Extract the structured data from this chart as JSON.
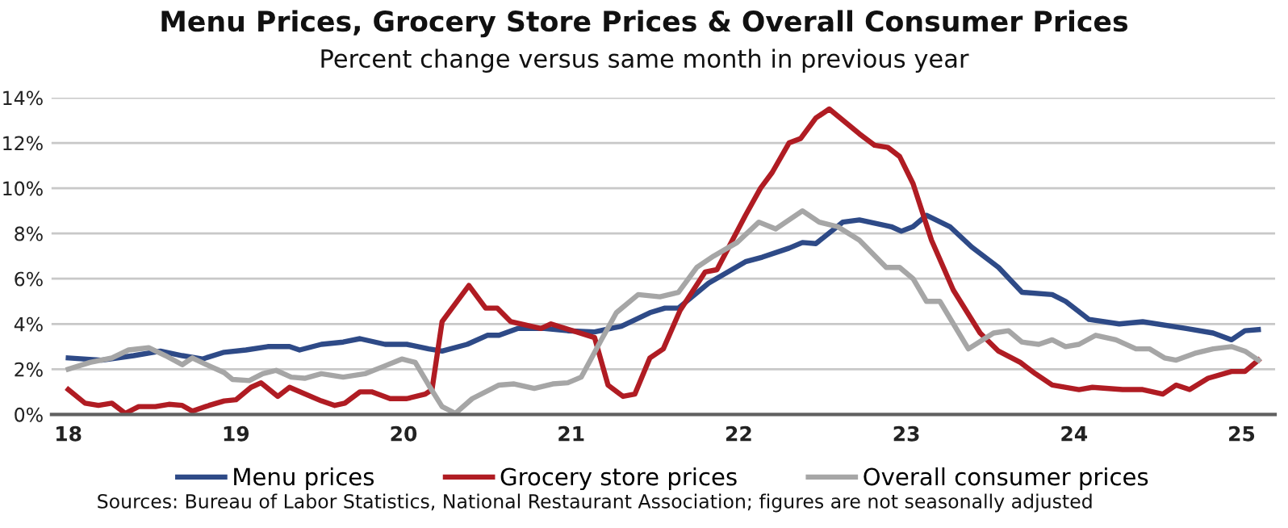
{
  "chart_data": {
    "type": "line",
    "title": "Menu Prices, Grocery Store Prices & Overall Consumer Prices",
    "subtitle": "Percent change versus same month in previous year",
    "annotations": [
      "Sources: Bureau of Labor Statistics, National Restaurant Association; figures are not seasonally adjusted"
    ],
    "xlim": [
      17.9,
      25.2
    ],
    "xticks": [
      18,
      19,
      20,
      21,
      22,
      23,
      24,
      25
    ],
    "ylim": [
      0,
      14
    ],
    "yticks": [
      {
        "value": 0,
        "label": "0%"
      },
      {
        "value": 2,
        "label": "2%"
      },
      {
        "value": 4,
        "label": "4%"
      },
      {
        "value": 6,
        "label": "6%"
      },
      {
        "value": 8,
        "label": "8%"
      },
      {
        "value": 10,
        "label": "10%"
      },
      {
        "value": 12,
        "label": "12%"
      },
      {
        "value": 14,
        "label": "14%"
      }
    ],
    "grid": "y",
    "legend": "bottom",
    "line_style": "solid",
    "marker": "none",
    "series": [
      {
        "name": "Menu prices",
        "color": "#2e4a87",
        "x": [
          18.0,
          18.2,
          18.39,
          18.55,
          18.68,
          18.8,
          18.93,
          19.06,
          19.19,
          19.32,
          19.38,
          19.51,
          19.64,
          19.74,
          19.89,
          20.02,
          20.15,
          20.23,
          20.38,
          20.5,
          20.57,
          20.68,
          20.84,
          20.98,
          21.14,
          21.3,
          21.47,
          21.56,
          21.64,
          21.82,
          22.04,
          22.14,
          22.3,
          22.38,
          22.46,
          22.62,
          22.72,
          22.91,
          22.97,
          23.04,
          23.12,
          23.26,
          23.39,
          23.55,
          23.69,
          23.87,
          23.95,
          24.09,
          24.27,
          24.41,
          24.67,
          24.83,
          24.94,
          25.02,
          25.1
        ],
        "values": [
          2.5,
          2.4,
          2.6,
          2.8,
          2.6,
          2.45,
          2.75,
          2.85,
          3.0,
          3.0,
          2.85,
          3.1,
          3.2,
          3.35,
          3.1,
          3.1,
          2.9,
          2.8,
          3.1,
          3.5,
          3.5,
          3.8,
          3.8,
          3.7,
          3.65,
          3.9,
          4.5,
          4.7,
          4.7,
          5.8,
          6.75,
          6.95,
          7.35,
          7.6,
          7.55,
          8.5,
          8.6,
          8.3,
          8.1,
          8.3,
          8.8,
          8.3,
          7.4,
          6.5,
          5.4,
          5.3,
          5.0,
          4.2,
          4.0,
          4.1,
          3.8,
          3.6,
          3.3,
          3.7,
          3.75
        ]
      },
      {
        "name": "Grocery store prices",
        "color": "#b01c23",
        "x": [
          18.0,
          18.1,
          18.18,
          18.26,
          18.34,
          18.42,
          18.52,
          18.6,
          18.68,
          18.74,
          18.84,
          18.93,
          19.0,
          19.09,
          19.15,
          19.25,
          19.32,
          19.51,
          19.59,
          19.65,
          19.74,
          19.81,
          19.92,
          20.02,
          20.13,
          20.17,
          20.23,
          20.39,
          20.49,
          20.56,
          20.64,
          20.82,
          20.88,
          21.14,
          21.22,
          21.31,
          21.38,
          21.47,
          21.55,
          21.65,
          21.8,
          21.87,
          22.04,
          22.13,
          22.2,
          22.3,
          22.37,
          22.46,
          22.54,
          22.72,
          22.81,
          22.89,
          22.96,
          23.04,
          23.15,
          23.28,
          23.44,
          23.55,
          23.68,
          23.77,
          23.87,
          24.03,
          24.11,
          24.29,
          24.41,
          24.53,
          24.61,
          24.69,
          24.8,
          24.94,
          25.02,
          25.1
        ],
        "values": [
          1.1,
          0.5,
          0.4,
          0.5,
          0.05,
          0.35,
          0.35,
          0.45,
          0.4,
          0.15,
          0.4,
          0.6,
          0.65,
          1.2,
          1.4,
          0.8,
          1.2,
          0.6,
          0.4,
          0.5,
          1.0,
          1.0,
          0.7,
          0.7,
          0.9,
          1.1,
          4.1,
          5.7,
          4.7,
          4.7,
          4.1,
          3.8,
          4.0,
          3.4,
          1.3,
          0.8,
          0.9,
          2.5,
          2.9,
          4.6,
          6.3,
          6.4,
          8.8,
          10.0,
          10.7,
          12.0,
          12.2,
          13.1,
          13.5,
          12.4,
          11.9,
          11.8,
          11.4,
          10.2,
          7.7,
          5.5,
          3.6,
          2.8,
          2.3,
          1.8,
          1.3,
          1.1,
          1.2,
          1.1,
          1.1,
          0.9,
          1.3,
          1.1,
          1.6,
          1.9,
          1.9,
          2.4
        ]
      },
      {
        "name": "Overall consumer prices",
        "color": "#a6a6a6",
        "x": [
          18.0,
          18.13,
          18.26,
          18.36,
          18.48,
          18.58,
          18.68,
          18.74,
          18.84,
          18.93,
          18.98,
          19.08,
          19.16,
          19.24,
          19.33,
          19.41,
          19.51,
          19.64,
          19.77,
          19.89,
          19.99,
          20.07,
          20.15,
          20.23,
          20.31,
          20.41,
          20.57,
          20.66,
          20.78,
          20.89,
          20.98,
          21.06,
          21.18,
          21.27,
          21.4,
          21.53,
          21.64,
          21.75,
          21.85,
          21.99,
          22.12,
          22.22,
          22.38,
          22.48,
          22.59,
          22.72,
          22.88,
          22.96,
          23.04,
          23.12,
          23.2,
          23.37,
          23.52,
          23.61,
          23.69,
          23.79,
          23.87,
          23.95,
          24.03,
          24.13,
          24.25,
          24.37,
          24.45,
          24.54,
          24.61,
          24.72,
          24.83,
          24.94,
          25.02,
          25.1
        ],
        "values": [
          2.0,
          2.3,
          2.5,
          2.85,
          2.95,
          2.6,
          2.2,
          2.5,
          2.15,
          1.85,
          1.55,
          1.5,
          1.8,
          1.95,
          1.65,
          1.6,
          1.8,
          1.65,
          1.8,
          2.15,
          2.45,
          2.3,
          1.3,
          0.35,
          0.05,
          0.7,
          1.3,
          1.35,
          1.15,
          1.35,
          1.4,
          1.65,
          3.3,
          4.5,
          5.3,
          5.2,
          5.4,
          6.5,
          7.0,
          7.6,
          8.5,
          8.2,
          9.0,
          8.5,
          8.3,
          7.7,
          6.5,
          6.5,
          6.0,
          5.0,
          5.0,
          2.9,
          3.6,
          3.7,
          3.2,
          3.1,
          3.3,
          3.0,
          3.1,
          3.5,
          3.3,
          2.9,
          2.9,
          2.5,
          2.4,
          2.7,
          2.9,
          3.0,
          2.8,
          2.4
        ]
      }
    ]
  }
}
